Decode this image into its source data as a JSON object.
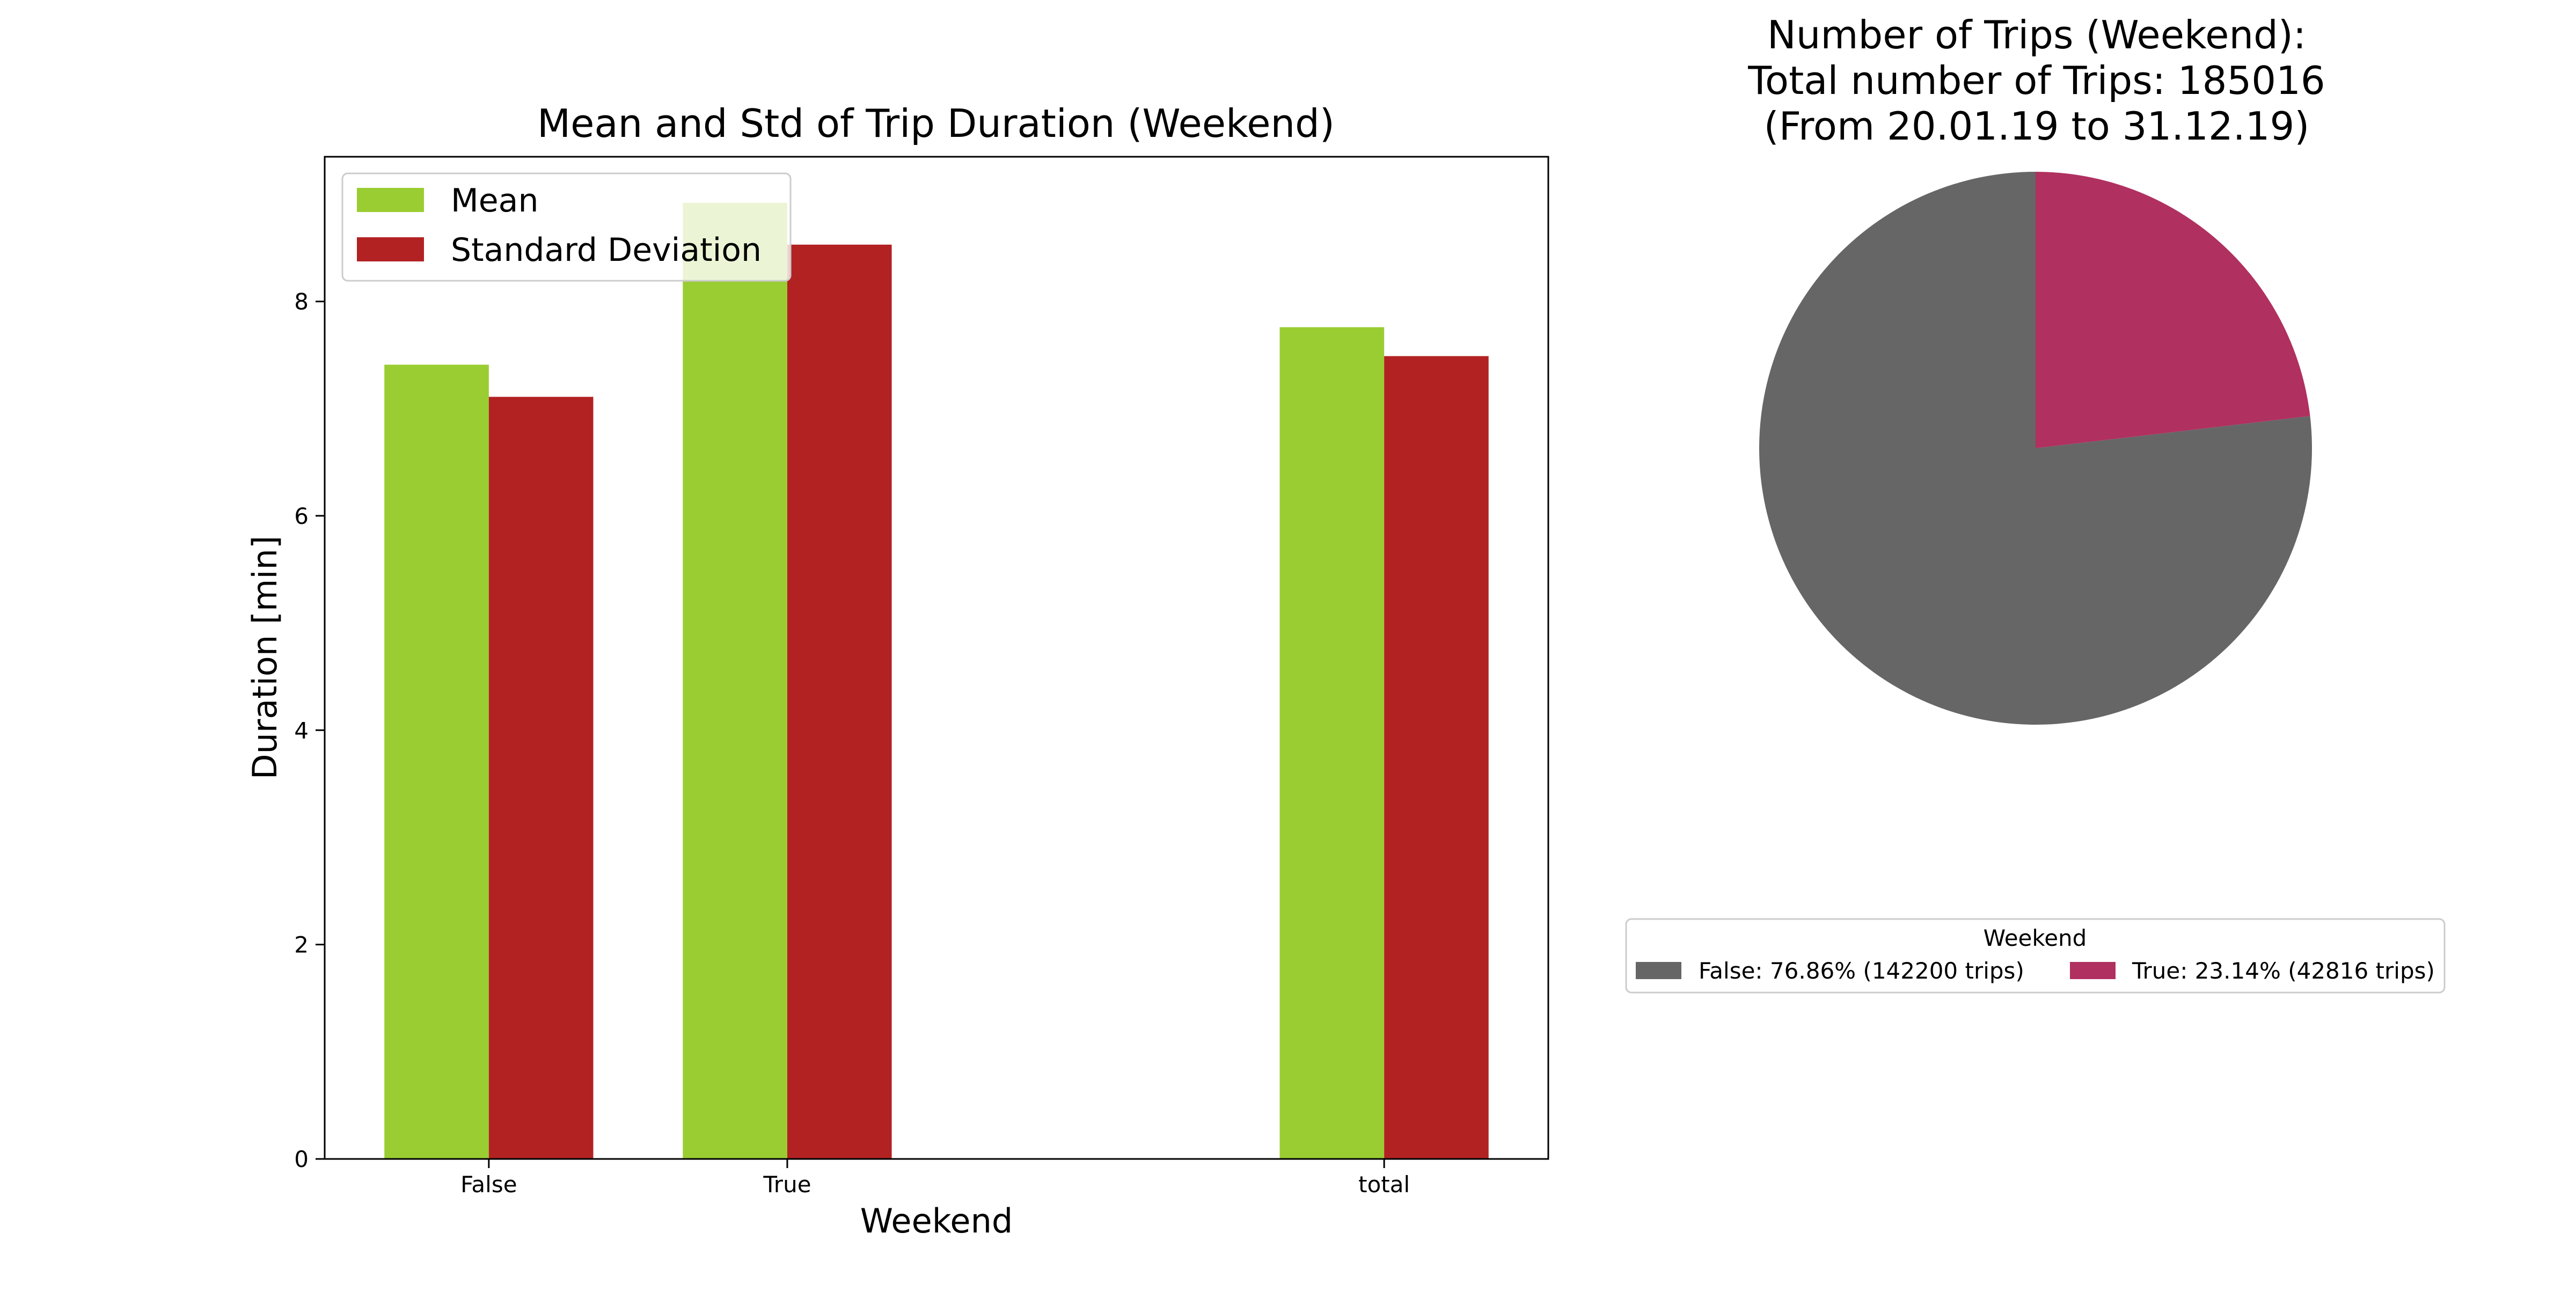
{
  "chart_data": [
    {
      "type": "bar",
      "title": "Mean and Std of Trip Duration (Weekend)",
      "xlabel": "Weekend",
      "ylabel": "Duration [min]",
      "categories": [
        "False",
        "True",
        "total"
      ],
      "category_positions": [
        0,
        1,
        3
      ],
      "ylim": [
        0,
        9.35
      ],
      "yticks": [
        0,
        2,
        4,
        6,
        8
      ],
      "grid": false,
      "legend_position": "upper-left",
      "series": [
        {
          "name": "Mean",
          "values": [
            7.41,
            8.92,
            7.76
          ],
          "color": "#9acd32"
        },
        {
          "name": "Standard Deviation",
          "values": [
            7.11,
            8.53,
            7.49
          ],
          "color": "#b22222"
        }
      ]
    },
    {
      "type": "pie",
      "title_lines": [
        "Number of Trips (Weekend):",
        "Total number of Trips: 185016",
        "(From 20.01.19 to 31.12.19)"
      ],
      "legend_title": "Weekend",
      "legend_position": "below",
      "slices": [
        {
          "label": "False: 76.86% (142200 trips)",
          "value": 142200,
          "percent": 76.86,
          "color": "#666666"
        },
        {
          "label": "True: 23.14% (42816 trips)",
          "value": 42816,
          "percent": 23.14,
          "color": "#b03060"
        }
      ]
    }
  ]
}
